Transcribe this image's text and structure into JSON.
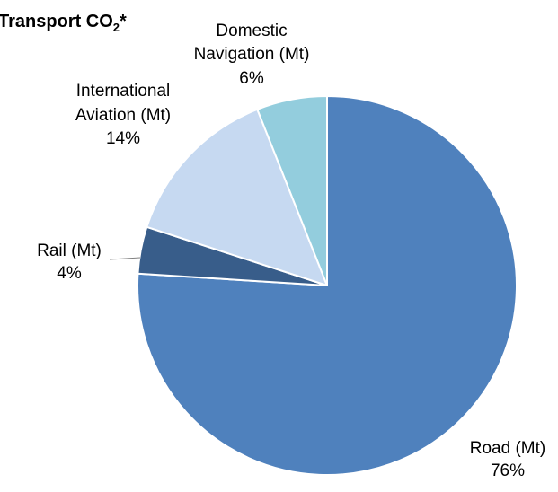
{
  "chart_data": {
    "type": "pie",
    "title": {
      "main": "Transport CO",
      "subscript": "2",
      "suffix": "*"
    },
    "slices": [
      {
        "label": "Road (Mt)",
        "percent_label": "76%",
        "value": 76,
        "color": "#4f81bd"
      },
      {
        "label": "Rail (Mt)",
        "percent_label": "4%",
        "value": 4,
        "color": "#385d8a"
      },
      {
        "label_lines": [
          "International",
          "Aviation (Mt)"
        ],
        "percent_label": "14%",
        "value": 14,
        "color": "#c6d9f1"
      },
      {
        "label_lines": [
          "Domestic",
          "Navigation (Mt)"
        ],
        "percent_label": "6%",
        "value": 6,
        "color": "#93cddd"
      }
    ],
    "start_angle_deg": 0,
    "direction": "clockwise",
    "legend": "none"
  }
}
